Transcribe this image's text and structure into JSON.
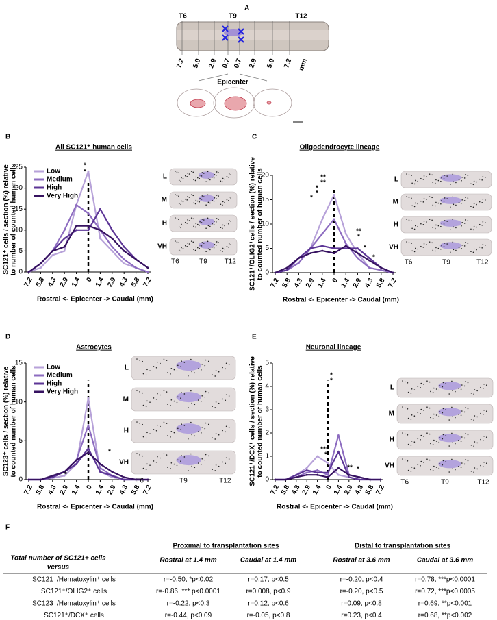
{
  "panel_a": {
    "label": "A",
    "levels": [
      "T6",
      "T9",
      "T12"
    ],
    "distances": [
      "7.2",
      "5.0",
      "2.9",
      "0.7",
      "0.7",
      "2.9",
      "5.0",
      "7.2"
    ],
    "unit": "mm",
    "epicenter": "Epicenter"
  },
  "chart_data": [
    {
      "panel": "B",
      "type": "line",
      "title": "All SC121⁺ human cells",
      "ylabel": [
        "SC121⁺ cells / section (%) relative",
        "to number of counted human cells"
      ],
      "xlabel": "Rostral <- Epicenter -> Caudal (mm)",
      "categories": [
        "7.2",
        "5.8",
        "4.3",
        "2.9",
        "1.4",
        "0",
        "1.4",
        "2.9",
        "4.3",
        "5.8",
        "7.2"
      ],
      "ylim": [
        0,
        25
      ],
      "yticks": [
        0,
        5,
        10,
        15,
        20,
        25
      ],
      "legend": true,
      "series": [
        {
          "name": "Low",
          "color": "#b7a2d9",
          "values": [
            0,
            1,
            4,
            5,
            16,
            24,
            8,
            5,
            2,
            1,
            0
          ]
        },
        {
          "name": "Medium",
          "color": "#8d6cc0",
          "values": [
            0,
            2,
            5,
            10,
            16,
            14,
            10,
            6,
            3,
            1,
            0
          ]
        },
        {
          "name": "High",
          "color": "#5c3596",
          "values": [
            0,
            2,
            5,
            8,
            10,
            10,
            15,
            10,
            6,
            3,
            1
          ]
        },
        {
          "name": "Very High",
          "color": "#361260",
          "values": [
            0,
            2,
            5,
            6,
            11,
            11,
            10,
            8,
            5,
            3,
            1
          ]
        }
      ],
      "insets": {
        "rows": [
          "L",
          "M",
          "H",
          "VH"
        ],
        "levels": [
          "T6",
          "T9",
          "T12"
        ]
      },
      "annotations": [
        "*",
        "*"
      ]
    },
    {
      "panel": "C",
      "type": "line",
      "title": "Oligodendrocyte lineage",
      "ylabel": [
        "SC121⁺/OLIG2⁺cells / section (%) relative",
        "to counted number of human cells"
      ],
      "xlabel": "Rostral <- Epicenter -> Caudal (mm)",
      "categories": [
        "7.2",
        "5.8",
        "4.3",
        "2.9",
        "1.4",
        "0",
        "1.4",
        "2.9",
        "4.3",
        "5.8",
        "7.2"
      ],
      "ylim": [
        0,
        20
      ],
      "yticks": [
        0,
        5,
        10,
        15,
        20
      ],
      "legend": false,
      "series": [
        {
          "name": "Low",
          "color": "#b7a2d9",
          "values": [
            0,
            0.5,
            2,
            5,
            11,
            16,
            8,
            4,
            1,
            0.5,
            0
          ]
        },
        {
          "name": "Medium",
          "color": "#8d6cc0",
          "values": [
            0,
            0.5,
            2,
            5,
            8,
            11,
            6,
            3,
            1,
            0.5,
            0
          ]
        },
        {
          "name": "High",
          "color": "#5c3596",
          "values": [
            0,
            0.5,
            3,
            5,
            5.5,
            5,
            5,
            5,
            3,
            1,
            0
          ]
        },
        {
          "name": "Very High",
          "color": "#361260",
          "values": [
            0,
            1,
            3,
            4,
            4.5,
            4,
            5.5,
            4,
            2.5,
            1,
            0
          ]
        }
      ],
      "insets": {
        "rows": [
          "L",
          "M",
          "H",
          "VH"
        ],
        "levels": [
          "T6",
          "T9",
          "T12"
        ]
      },
      "annotations": [
        "**",
        "**",
        "*",
        "*",
        "*",
        "**",
        "*",
        "*",
        "*"
      ]
    },
    {
      "panel": "D",
      "type": "line",
      "title": "Astrocytes",
      "ylabel": [
        "SC123⁺ cells / section (%) relative",
        "to counted number of human cells"
      ],
      "xlabel": "Rostral <- Epicenter -> Caudal (mm)",
      "categories": [
        "7.2",
        "5.8",
        "4.3",
        "2.9",
        "1.4",
        "0",
        "1.4",
        "2.9",
        "4.3",
        "5.8",
        "7.2"
      ],
      "ylim": [
        0,
        15
      ],
      "yticks": [
        0,
        5,
        10,
        15
      ],
      "legend": true,
      "series": [
        {
          "name": "Low",
          "color": "#b7a2d9",
          "values": [
            0,
            0,
            0.2,
            0.5,
            2,
            10.5,
            1,
            0.3,
            0,
            0,
            0
          ]
        },
        {
          "name": "Medium",
          "color": "#8d6cc0",
          "values": [
            0,
            0,
            0.3,
            1,
            2.5,
            7,
            1.5,
            0.5,
            0,
            0,
            0
          ]
        },
        {
          "name": "High",
          "color": "#5c3596",
          "values": [
            0,
            0,
            0.3,
            1,
            2,
            4,
            1,
            0.5,
            0,
            0,
            0
          ]
        },
        {
          "name": "Very High",
          "color": "#361260",
          "values": [
            0,
            0,
            0.5,
            1,
            2.5,
            3.5,
            2,
            1,
            0.3,
            0,
            0
          ]
        }
      ],
      "insets": {
        "rows": [
          "L",
          "M",
          "H",
          "VH"
        ],
        "levels": [
          "T6",
          "T9",
          "T12"
        ]
      },
      "annotations": [
        "*",
        "*"
      ]
    },
    {
      "panel": "E",
      "type": "line",
      "title": "Neuronal lineage",
      "ylabel": [
        "SC121⁺/DCX⁺ cells / section (%) relative",
        "to counted number of human cells"
      ],
      "xlabel": "Rostral <- Epicenter -> Caudal (mm)",
      "categories": [
        "7.2",
        "5.8",
        "4.3",
        "2.9",
        "1.4",
        "0",
        "1.4",
        "2.9",
        "4.3",
        "5.8",
        "7.2"
      ],
      "ylim": [
        0,
        5
      ],
      "yticks": [
        0,
        1,
        2,
        3,
        4,
        5
      ],
      "legend": false,
      "series": [
        {
          "name": "Low",
          "color": "#b7a2d9",
          "values": [
            0,
            0,
            0.2,
            0.5,
            1.0,
            0.7,
            0.2,
            0.1,
            0,
            0,
            0
          ]
        },
        {
          "name": "Medium",
          "color": "#8d6cc0",
          "values": [
            0,
            0,
            0.1,
            0.3,
            0.4,
            0.2,
            1.9,
            0.2,
            0.1,
            0,
            0
          ]
        },
        {
          "name": "High",
          "color": "#5c3596",
          "values": [
            0,
            0,
            0.2,
            0.4,
            0.3,
            0.3,
            1.2,
            0.1,
            0,
            0,
            0
          ]
        },
        {
          "name": "Very High",
          "color": "#361260",
          "values": [
            0,
            0,
            0.1,
            0.2,
            0.2,
            0.1,
            0.5,
            0.2,
            0.1,
            0,
            0
          ]
        }
      ],
      "insets": {
        "rows": [
          "L",
          "M",
          "H",
          "VH"
        ],
        "levels": [
          "T6",
          "T9",
          "T12"
        ]
      },
      "annotations": [
        "*",
        "*",
        "***",
        "*",
        "**",
        "*"
      ]
    }
  ],
  "table": {
    "label": "F",
    "corner": [
      "Total number of SC121+ cells",
      "versus"
    ],
    "groups": [
      "Proximal to transplantation sites",
      "Distal to transplantation sites"
    ],
    "columns": [
      "Rostral at 1.4 mm",
      "Caudal at 1.4 mm",
      "Rostral at 3.6 mm",
      "Caudal at 3.6 mm"
    ],
    "rows": [
      [
        "SC121⁺/Hematoxylin⁺ cells",
        "r=-0.50, *p<0.02",
        "r=0.17, p<0.5",
        "r=-0.20, p<0.4",
        "r=0.78, ***p<0.0001"
      ],
      [
        "SC121⁺/OLIG2⁺ cells",
        "r=-0.86, *** p<0.0001",
        "r=0.008, p<0.9",
        "r=-0.20, p<0.5",
        "r=0.72, ***p<0.0005"
      ],
      [
        "SC123⁺/Hematoxylin⁺ cells",
        "r=-0.22, p<0.3",
        "r=0.12, p<0.6",
        "r=0.09, p<0.8",
        "r=0.69, **p<0.001"
      ],
      [
        "SC121⁺/DCX⁺ cells",
        "r=-0.44, p<0.09",
        "r=-0.05, p<0.8",
        "r=0.23, p<0.4",
        "r=0.68, **p<0.002"
      ]
    ]
  }
}
